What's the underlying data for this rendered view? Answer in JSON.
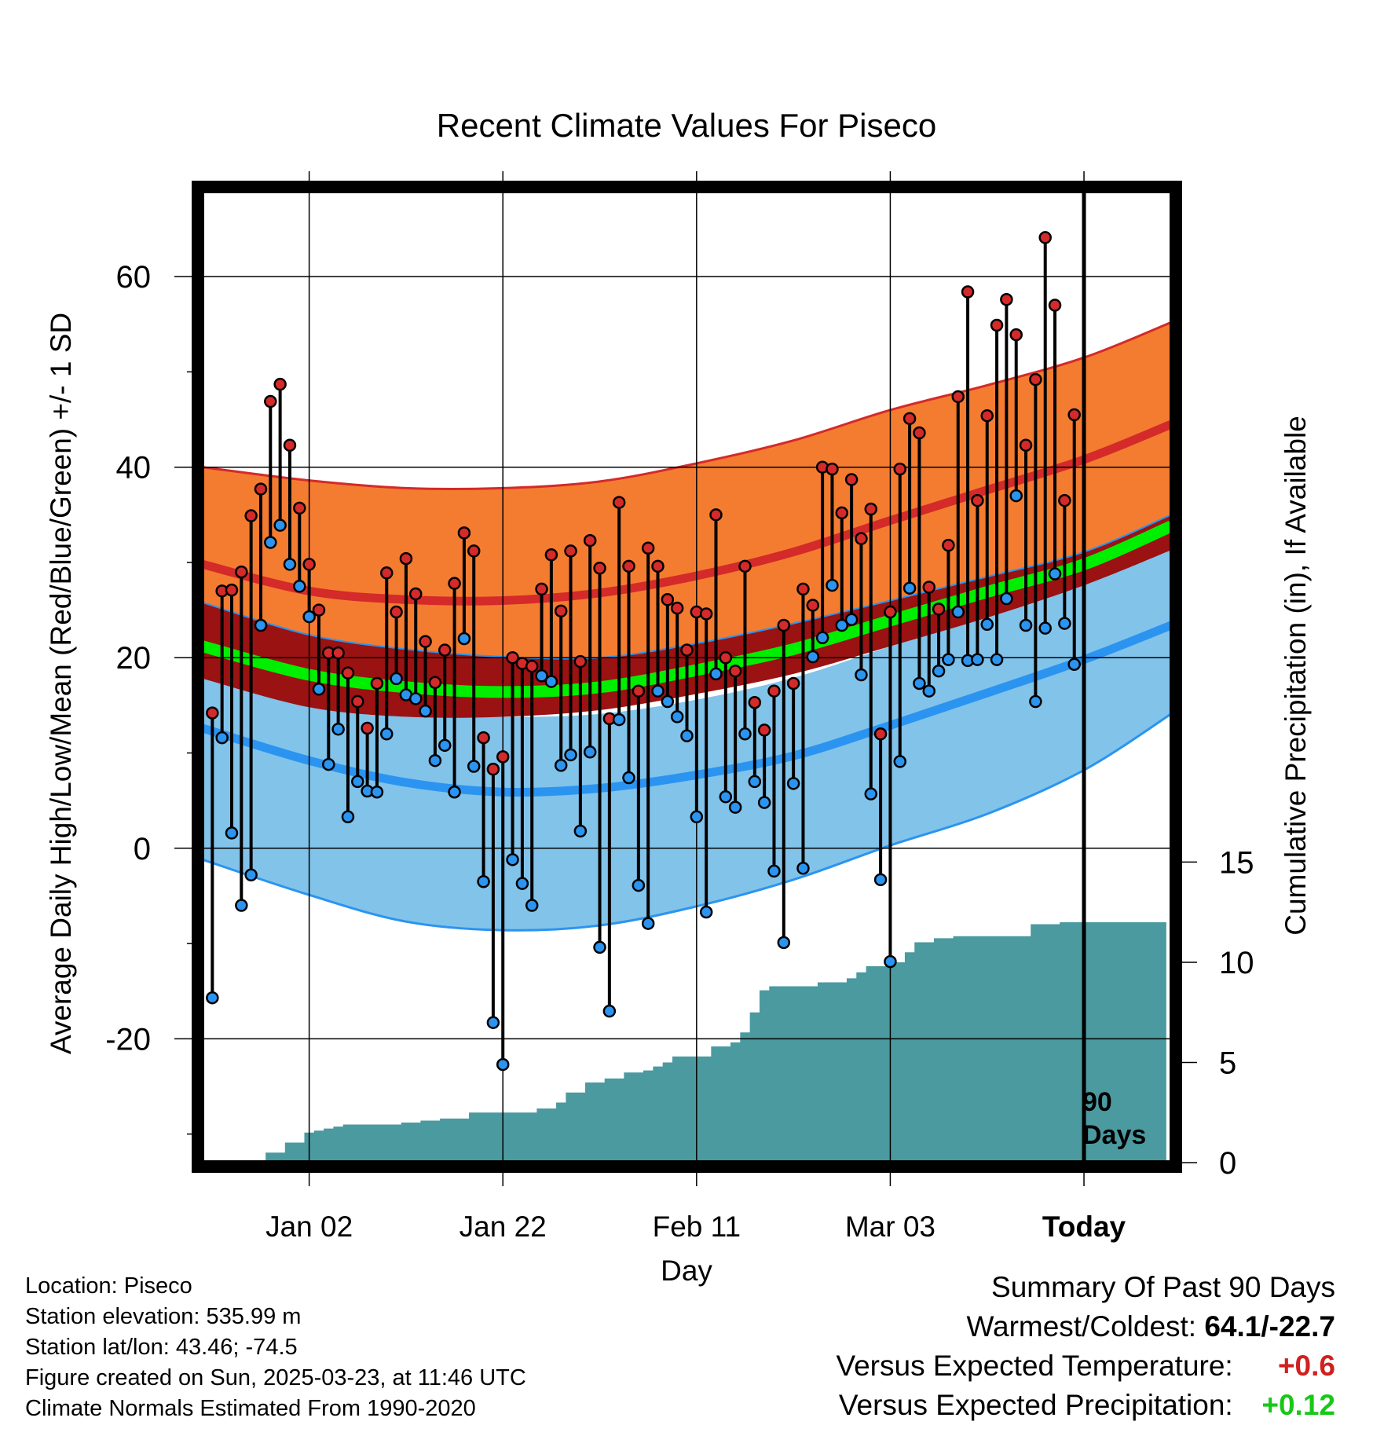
{
  "title": "Recent Climate Values For Piseco",
  "y_left_label": "Average Daily High/Low/Mean (Red/Blue/Green) +/- 1 SD",
  "y_right_label": "Cumulative Precipitation (in), If Available",
  "x_label": "Day",
  "today_marker": {
    "line1": "90",
    "line2": "Days"
  },
  "footer": {
    "location": "Location: Piseco",
    "elevation": "Station elevation: 535.99 m",
    "latlon": "Station lat/lon: 43.46; -74.5",
    "created": "Figure created on Sun, 2025-03-23, at 11:46 UTC",
    "normals": "Climate Normals Estimated From 1990-2020"
  },
  "summary": {
    "heading": "Summary Of Past 90 Days",
    "warm_cold_label": "Warmest/Coldest:",
    "warm_cold_value": "64.1/-22.7",
    "temp_label": "Versus Expected Temperature:",
    "temp_value": "+0.6",
    "precip_label": "Versus Expected Precipitation:",
    "precip_value": "+0.12"
  },
  "colors": {
    "high_band": "#f47c30",
    "high_line": "#d42a2a",
    "low_band": "#82c3ea",
    "low_line": "#2b94f0",
    "mean_band": "#9a1212",
    "mean_line": "#00ee00",
    "precip": "#4a9aa0",
    "high_marker": "#d42a2a",
    "low_marker": "#2b94f0"
  },
  "chart_data": {
    "type": "line",
    "x_ticks": [
      "Jan 02",
      "Jan 22",
      "Feb 11",
      "Mar 03",
      "Today"
    ],
    "x_tick_days": [
      10,
      30,
      50,
      70,
      90
    ],
    "xlim": [
      -1,
      99
    ],
    "y_left_ticks": [
      -20,
      0,
      20,
      40,
      60
    ],
    "ylim_left": [
      -33,
      69
    ],
    "y_right_ticks": [
      0,
      5,
      10,
      15
    ],
    "ylim_right": [
      0,
      48.5
    ],
    "grid": true,
    "normals": {
      "days": [
        -1,
        10,
        20,
        30,
        40,
        50,
        60,
        70,
        80,
        90,
        99
      ],
      "high_mean": [
        29.8,
        27.0,
        26.1,
        26.0,
        26.8,
        28.6,
        31.1,
        34.4,
        37.6,
        40.8,
        44.5
      ],
      "high_sd_upper": [
        40.0,
        38.6,
        37.8,
        37.8,
        38.5,
        40.4,
        42.8,
        46.0,
        48.6,
        51.5,
        55.2
      ],
      "high_sd_lower": [
        25.8,
        22.4,
        20.9,
        20.1,
        20.0,
        21.5,
        23.6,
        26.0,
        28.5,
        31.1,
        35.0
      ],
      "mean_mean": [
        21.2,
        18.2,
        16.9,
        16.4,
        16.9,
        18.7,
        20.9,
        23.9,
        26.9,
        29.8,
        33.8
      ],
      "mean_sd_lower": [
        17.8,
        14.8,
        13.8,
        13.8,
        14.5,
        16.2,
        18.3,
        21.2,
        24.2,
        27.6,
        31.3
      ],
      "low_mean": [
        12.6,
        9.2,
        6.9,
        5.9,
        6.3,
        7.7,
        9.7,
        12.9,
        16.3,
        19.8,
        23.4
      ],
      "low_sd_upper": [
        18.3,
        15.6,
        14.2,
        13.8,
        14.1,
        15.6,
        17.9,
        21.2,
        24.5,
        28.6,
        33.0
      ],
      "low_sd_lower": [
        -1.2,
        -4.9,
        -7.7,
        -8.6,
        -8.1,
        -6.1,
        -3.3,
        0.3,
        3.6,
        8.2,
        14.1
      ]
    },
    "daily": {
      "days": [
        0,
        1,
        2,
        3,
        4,
        5,
        6,
        7,
        8,
        9,
        10,
        11,
        12,
        13,
        14,
        15,
        16,
        17,
        18,
        19,
        20,
        21,
        22,
        23,
        24,
        25,
        26,
        27,
        28,
        29,
        30,
        31,
        32,
        33,
        34,
        35,
        36,
        37,
        38,
        39,
        40,
        41,
        42,
        43,
        44,
        45,
        46,
        47,
        48,
        49,
        50,
        51,
        52,
        53,
        54,
        55,
        56,
        57,
        58,
        59,
        60,
        61,
        62,
        63,
        64,
        65,
        66,
        67,
        68,
        69,
        70,
        71,
        72,
        73,
        74,
        75,
        76,
        77,
        78,
        79,
        80,
        81,
        82,
        83,
        84,
        85,
        86,
        87,
        88,
        89
      ],
      "high": [
        14.2,
        27.0,
        27.1,
        29.0,
        34.9,
        37.7,
        46.9,
        48.7,
        42.3,
        35.7,
        29.8,
        25.0,
        20.5,
        20.5,
        18.4,
        15.4,
        12.6,
        17.3,
        28.9,
        24.8,
        30.4,
        26.7,
        21.7,
        17.4,
        20.8,
        27.8,
        33.1,
        31.2,
        11.6,
        8.3,
        9.6,
        20.0,
        19.4,
        19.1,
        27.2,
        30.8,
        24.9,
        31.2,
        19.6,
        32.3,
        29.4,
        13.6,
        36.3,
        29.6,
        16.5,
        31.5,
        29.6,
        26.1,
        25.2,
        20.8,
        24.8,
        24.6,
        35.0,
        20.0,
        18.6,
        29.6,
        15.3,
        12.4,
        16.5,
        23.4,
        17.3,
        27.2,
        25.5,
        40.0,
        39.8,
        35.2,
        38.7,
        32.5,
        35.6,
        12.0,
        24.8,
        39.8,
        45.1,
        43.6,
        27.4,
        25.1,
        31.8,
        47.4,
        58.4,
        36.5,
        45.4,
        54.9,
        57.6,
        53.9,
        42.3,
        49.2,
        64.1,
        57.0,
        36.5,
        45.5
      ],
      "low": [
        -15.7,
        11.6,
        1.6,
        -6.0,
        -2.8,
        23.4,
        32.1,
        33.9,
        29.8,
        27.5,
        24.3,
        16.7,
        8.8,
        12.5,
        3.3,
        7.0,
        6.0,
        5.9,
        12.0,
        17.8,
        16.1,
        15.7,
        14.4,
        9.2,
        10.8,
        5.9,
        22.0,
        8.6,
        -3.5,
        -18.3,
        -22.7,
        -1.2,
        -3.7,
        -6.0,
        18.1,
        17.5,
        8.7,
        9.8,
        1.8,
        10.1,
        -10.4,
        -17.1,
        13.5,
        7.4,
        -3.9,
        -7.9,
        16.5,
        15.4,
        13.8,
        11.8,
        3.3,
        -6.7,
        18.3,
        5.4,
        4.3,
        12.0,
        7.0,
        4.8,
        -2.4,
        -9.9,
        6.8,
        -2.1,
        20.1,
        22.1,
        27.6,
        23.4,
        24.0,
        18.2,
        5.7,
        -3.3,
        -11.9,
        9.1,
        27.3,
        17.3,
        16.5,
        18.6,
        19.8,
        24.8,
        19.7,
        19.8,
        23.5,
        19.8,
        26.2,
        37.0,
        23.4,
        15.4,
        23.1,
        28.8,
        23.6,
        19.3
      ]
    },
    "precip_cumulative": {
      "days": [
        5,
        6,
        7,
        8,
        9,
        10,
        11,
        12,
        13,
        14,
        15,
        16,
        17,
        18,
        19,
        20,
        21,
        22,
        23,
        24,
        25,
        26,
        27,
        28,
        29,
        30,
        31,
        32,
        33,
        34,
        35,
        36,
        37,
        38,
        39,
        40,
        41,
        42,
        43,
        44,
        45,
        46,
        47,
        48,
        49,
        50,
        51,
        52,
        53,
        54,
        55,
        56,
        57,
        58,
        59,
        60,
        61,
        62,
        63,
        64,
        65,
        66,
        67,
        68,
        69,
        70,
        71,
        72,
        73,
        74,
        75,
        76,
        77,
        78,
        79,
        80,
        81,
        82,
        83,
        84,
        85,
        86,
        87,
        88,
        89,
        90,
        91,
        92,
        93,
        94,
        95,
        96,
        97,
        98
      ],
      "values": [
        0.0,
        0.5,
        0.5,
        1.0,
        1.0,
        1.5,
        1.6,
        1.7,
        1.8,
        1.9,
        1.9,
        1.9,
        1.9,
        1.9,
        1.9,
        2.0,
        2.0,
        2.1,
        2.1,
        2.2,
        2.2,
        2.2,
        2.5,
        2.5,
        2.5,
        2.5,
        2.5,
        2.5,
        2.5,
        2.7,
        2.7,
        3.0,
        3.5,
        3.5,
        4.0,
        4.0,
        4.2,
        4.2,
        4.5,
        4.5,
        4.6,
        4.8,
        5.0,
        5.3,
        5.3,
        5.3,
        5.3,
        5.8,
        5.8,
        6.0,
        6.5,
        7.5,
        8.6,
        8.8,
        8.8,
        8.8,
        8.8,
        8.8,
        9.0,
        9.0,
        9.0,
        9.2,
        9.5,
        9.8,
        9.8,
        9.8,
        10.0,
        10.5,
        11.0,
        11.0,
        11.2,
        11.2,
        11.3,
        11.3,
        11.3,
        11.3,
        11.3,
        11.3,
        11.3,
        11.3,
        11.9,
        11.9,
        11.9,
        12.0,
        12.0,
        12.0,
        12.0,
        12.0,
        12.0,
        12.0,
        12.0,
        12.0,
        12.0,
        12.0
      ]
    }
  }
}
